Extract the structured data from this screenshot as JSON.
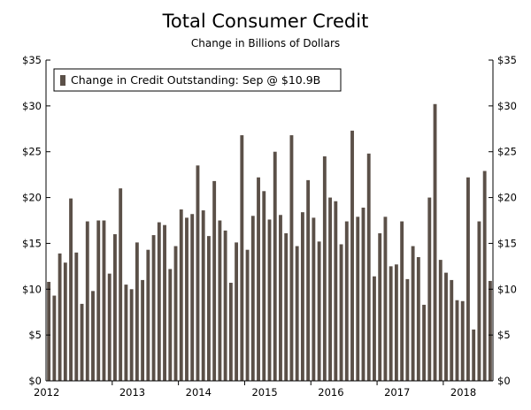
{
  "chart_data": {
    "type": "bar",
    "title": "Total Consumer Credit",
    "subtitle": "Change in Billions of Dollars",
    "xlabel": "",
    "ylabel": "",
    "ylim": [
      0,
      35
    ],
    "y_ticks": [
      0,
      5,
      10,
      15,
      20,
      25,
      30,
      35
    ],
    "y_tick_labels": [
      "$0",
      "$5",
      "$10",
      "$15",
      "$20",
      "$25",
      "$30",
      "$35"
    ],
    "x_tick_labels": [
      "2012",
      "2013",
      "2014",
      "2015",
      "2016",
      "2017",
      "2018"
    ],
    "grid": false,
    "legend_position": "top-left",
    "colors": {
      "bar": "#5b5048",
      "axis": "#000000"
    },
    "series": [
      {
        "name": "Change in Credit Outstanding: Sep @ $10.9B",
        "values": [
          10.8,
          9.3,
          13.9,
          12.9,
          19.9,
          14.0,
          8.4,
          17.4,
          9.8,
          17.5,
          17.5,
          11.7,
          16.0,
          21.0,
          10.5,
          10.0,
          15.1,
          11.0,
          14.3,
          15.9,
          17.3,
          17.0,
          12.2,
          14.7,
          18.7,
          17.8,
          18.2,
          23.5,
          18.6,
          15.8,
          21.8,
          17.5,
          16.4,
          10.7,
          15.1,
          26.8,
          14.3,
          18.0,
          22.2,
          20.7,
          17.6,
          25.0,
          18.1,
          16.1,
          26.8,
          14.7,
          18.4,
          21.9,
          17.8,
          15.2,
          24.5,
          20.0,
          19.6,
          14.9,
          17.4,
          27.3,
          17.9,
          18.9,
          24.8,
          11.4,
          16.1,
          17.9,
          12.5,
          12.7,
          17.4,
          11.1,
          14.7,
          13.5,
          8.3,
          20.0,
          30.2,
          13.2,
          11.8,
          11.0,
          8.8,
          8.7,
          22.2,
          5.6,
          17.4,
          22.9,
          10.9
        ]
      }
    ]
  }
}
